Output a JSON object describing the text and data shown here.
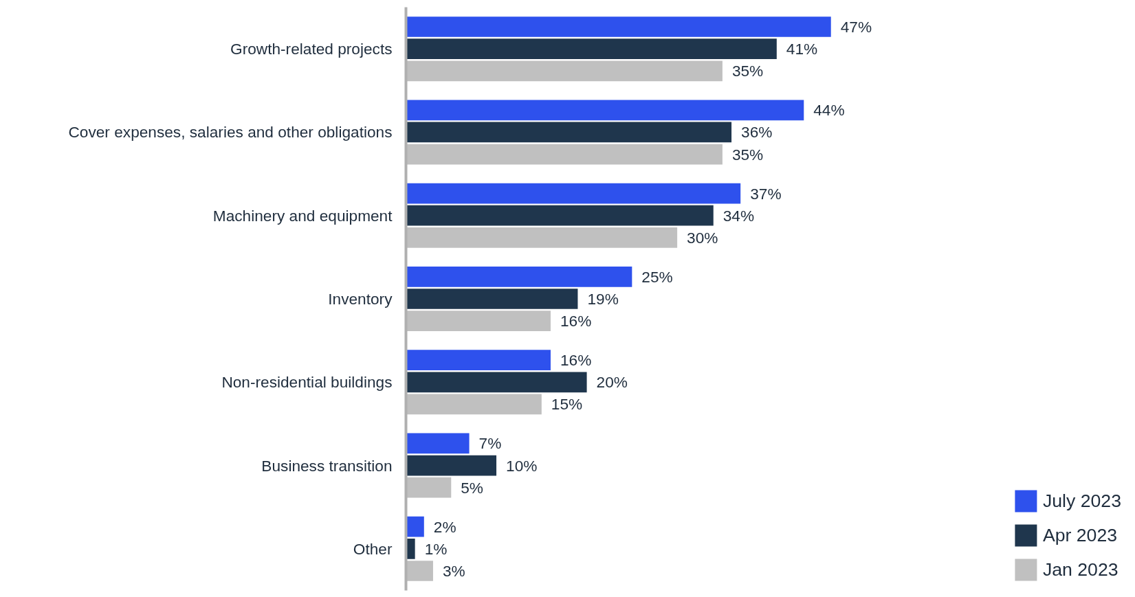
{
  "chart_data": {
    "type": "bar",
    "orientation": "horizontal",
    "categories": [
      "Growth-related projects",
      "Cover expenses, salaries and other obligations",
      "Machinery and equipment",
      "Inventory",
      "Non-residential buildings",
      "Business transition",
      "Other"
    ],
    "series": [
      {
        "name": "July 2023",
        "color": "#2e51ed",
        "values": [
          47,
          44,
          37,
          25,
          16,
          7,
          2
        ],
        "value_labels": [
          "47%",
          "44%",
          "37%",
          "25%",
          "16%",
          "7%",
          "2%"
        ]
      },
      {
        "name": "Apr 2023",
        "color": "#1f364d",
        "values": [
          41,
          36,
          34,
          19,
          20,
          10,
          1
        ],
        "value_labels": [
          "41%",
          "36%",
          "34%",
          "19%",
          "20%",
          "10%",
          "1%"
        ]
      },
      {
        "name": "Jan 2023",
        "color": "#c0c0c0",
        "values": [
          35,
          35,
          30,
          16,
          15,
          5,
          3
        ],
        "value_labels": [
          "35%",
          "35%",
          "30%",
          "16%",
          "15%",
          "5%",
          "3%"
        ]
      }
    ],
    "legend": "bottom right",
    "grid": false,
    "tick_labels": "y"
  }
}
